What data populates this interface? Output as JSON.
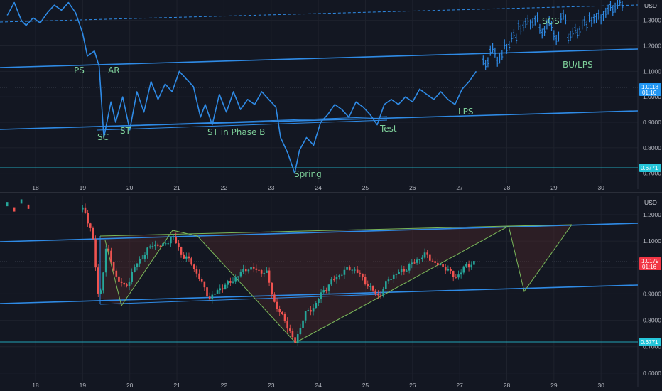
{
  "chart_data": [
    {
      "type": "line",
      "panel": "top",
      "unit_label": "USD",
      "y_ticks": [
        "1.3000",
        "1.2000",
        "1.1000",
        "1.0000",
        "0.9000",
        "0.8000",
        "0.7000"
      ],
      "x_ticks": [
        "18",
        "19",
        "20",
        "21",
        "22",
        "23",
        "24",
        "25",
        "26",
        "27",
        "28",
        "29",
        "30"
      ],
      "xlim": [
        17.4,
        30.9
      ],
      "ylim": [
        0.66,
        1.38
      ],
      "price_tag": {
        "value": "1.0118",
        "time": "01:16",
        "color": "#2196f3"
      },
      "level_tag": {
        "value": "0.6771",
        "color": "#26c6da"
      },
      "series": [
        {
          "x": [
            17.4,
            17.55,
            17.7,
            17.8,
            17.95,
            18.1,
            18.25,
            18.4,
            18.55,
            18.7,
            18.85,
            19.0,
            19.1,
            19.25,
            19.35,
            19.45,
            19.6,
            19.7,
            19.85,
            20.0,
            20.15,
            20.3,
            20.45,
            20.6,
            20.75,
            20.9,
            21.05,
            21.2,
            21.35,
            21.5,
            21.6,
            21.75,
            21.9,
            22.05,
            22.2,
            22.35,
            22.5,
            22.65,
            22.8,
            22.95,
            23.1,
            23.2,
            23.35,
            23.5,
            23.6,
            23.75,
            23.9,
            24.05,
            24.2,
            24.35,
            24.5,
            24.65,
            24.8,
            24.95,
            25.1,
            25.25,
            25.4,
            25.55,
            25.7,
            25.85,
            26.0,
            26.15,
            26.3,
            26.45,
            26.6,
            26.75,
            26.9,
            27.05,
            27.2,
            27.35,
            27.5,
            27.65,
            27.8,
            27.95,
            28.1,
            28.25,
            28.4,
            28.55,
            28.7,
            28.85,
            29.0,
            29.15,
            29.3,
            29.45,
            29.6,
            29.75,
            29.9,
            30.05,
            30.2,
            30.35
          ],
          "y": [
            1.32,
            1.37,
            1.3,
            1.28,
            1.31,
            1.29,
            1.33,
            1.36,
            1.34,
            1.37,
            1.33,
            1.25,
            1.16,
            1.18,
            1.12,
            0.84,
            0.98,
            0.9,
            1.0,
            0.87,
            1.02,
            0.94,
            1.06,
            0.99,
            1.05,
            1.02,
            1.1,
            1.07,
            1.04,
            0.92,
            0.97,
            0.89,
            1.01,
            0.94,
            1.02,
            0.95,
            0.99,
            0.97,
            1.02,
            0.99,
            0.96,
            0.84,
            0.78,
            0.7,
            0.79,
            0.84,
            0.81,
            0.9,
            0.93,
            0.97,
            0.95,
            0.92,
            0.98,
            0.96,
            0.93,
            0.89,
            0.97,
            0.99,
            0.97,
            1.0,
            0.98,
            1.03,
            1.01,
            0.99,
            1.02,
            0.99,
            0.97,
            1.03,
            1.06,
            1.1,
            1.13,
            1.18,
            1.15,
            1.2,
            1.24,
            1.27,
            1.29,
            1.3,
            1.26,
            1.29,
            1.23,
            1.31,
            1.24,
            1.26,
            1.29,
            1.3,
            1.31,
            1.33,
            1.35,
            1.37
          ]
        }
      ],
      "annotations": [
        "PS",
        "AR",
        "SC",
        "ST",
        "ST in Phase B",
        "Spring",
        "Test",
        "LPS",
        "SOS",
        "BU/LPS"
      ]
    },
    {
      "type": "candlestick",
      "panel": "bottom",
      "unit_label": "USD",
      "y_ticks": [
        "1.2000",
        "1.1000",
        "1.0000",
        "0.9000",
        "0.8000",
        "0.7000",
        "0.6000"
      ],
      "x_ticks": [
        "18",
        "19",
        "20",
        "21",
        "22",
        "23",
        "24",
        "25",
        "26",
        "27",
        "28",
        "29",
        "30"
      ],
      "xlim": [
        17.4,
        30.9
      ],
      "ylim": [
        0.57,
        1.27
      ],
      "price_tag": {
        "value": "1.0179",
        "time": "01:16",
        "color": "#f23645"
      },
      "level_tag": {
        "value": "0.6771",
        "color": "#26c6da"
      },
      "close_path_x": [
        19.0,
        19.2,
        19.35,
        19.5,
        19.7,
        19.9,
        20.1,
        20.3,
        20.5,
        20.7,
        20.9,
        21.1,
        21.3,
        21.5,
        21.7,
        21.9,
        22.1,
        22.3,
        22.5,
        22.7,
        22.9,
        23.1,
        23.3,
        23.5,
        23.7,
        23.9,
        24.1,
        24.3,
        24.5,
        24.7,
        24.9,
        25.1,
        25.3,
        25.5,
        25.7,
        25.9,
        26.1,
        26.3,
        26.5,
        26.7,
        26.9,
        27.1,
        27.3
      ],
      "close_path_y": [
        1.22,
        1.14,
        0.86,
        1.08,
        0.97,
        0.92,
        1.0,
        1.05,
        1.09,
        1.08,
        1.12,
        1.05,
        1.02,
        0.95,
        0.88,
        0.92,
        0.94,
        0.97,
        1.0,
        0.99,
        0.98,
        0.85,
        0.8,
        0.71,
        0.82,
        0.85,
        0.91,
        0.95,
        0.98,
        1.0,
        0.97,
        0.92,
        0.89,
        0.96,
        0.98,
        1.0,
        1.03,
        1.05,
        1.01,
        1.0,
        0.96,
        1.0,
        1.02
      ]
    }
  ]
}
